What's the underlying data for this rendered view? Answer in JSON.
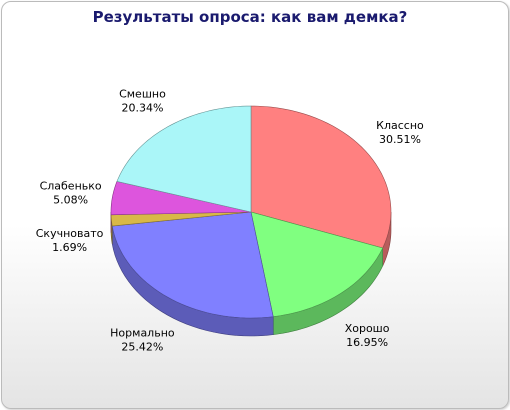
{
  "chart_data": {
    "type": "pie",
    "title": "Результаты опроса: как вам демка?",
    "categories": [
      "Классно",
      "Хорошо",
      "Нормально",
      "Скучновато",
      "Слабенько",
      "Смешно"
    ],
    "values": [
      30.51,
      16.95,
      25.42,
      1.69,
      5.08,
      20.34
    ],
    "value_labels": [
      "30.51%",
      "16.95%",
      "25.42%",
      "1.69%",
      "5.08%",
      "20.34%"
    ],
    "colors": [
      "#ff8080",
      "#80ff80",
      "#8080ff",
      "#d8b848",
      "#dd55dd",
      "#aaf6f8"
    ]
  }
}
